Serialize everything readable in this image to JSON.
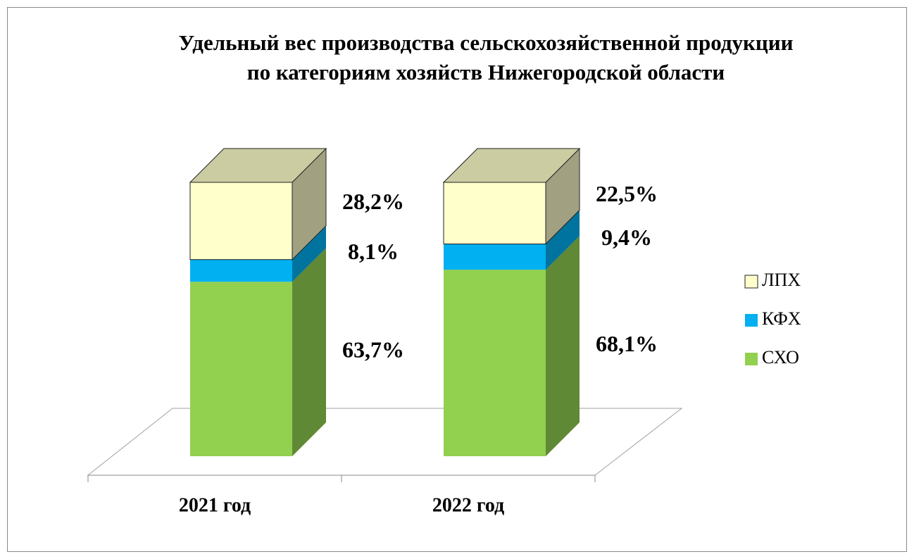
{
  "chart_data": {
    "type": "bar3d_stacked",
    "title": [
      "Удельный вес производства сельскохозяйственной продукции",
      "по категориям хозяйств Нижегородской области"
    ],
    "categories": [
      "2021 год",
      "2022 год"
    ],
    "series": [
      {
        "name": "СХО",
        "color": "#92d050",
        "values": [
          63.7,
          68.1
        ],
        "value_labels": [
          "63,7%",
          "68,1%"
        ]
      },
      {
        "name": "КФХ",
        "color": "#00b0f0",
        "values": [
          8.1,
          9.4
        ],
        "value_labels": [
          "8,1%",
          "9,4%"
        ]
      },
      {
        "name": "ЛПХ",
        "color": "#ffffcc",
        "values": [
          28.2,
          22.5
        ],
        "value_labels": [
          "28,2%",
          "22,5%"
        ]
      }
    ],
    "legend": "right"
  }
}
